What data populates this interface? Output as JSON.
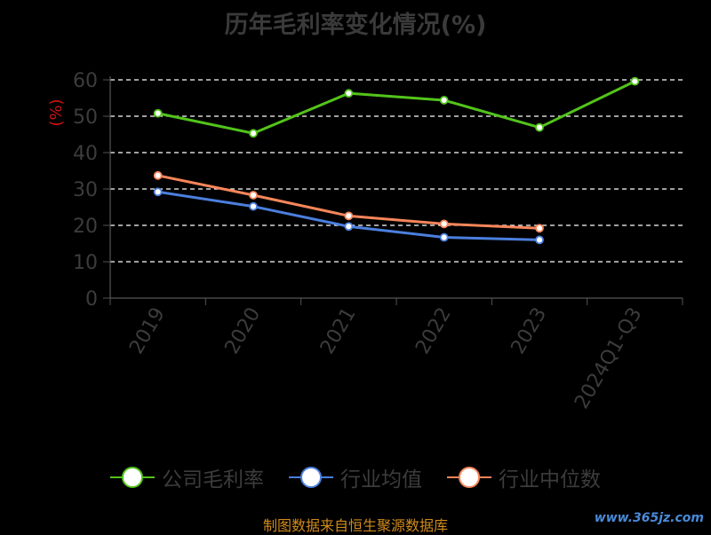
{
  "title": "历年毛利率变化情况(%)",
  "source_note": "制图数据来自恒生聚源数据库",
  "watermark": "www.365jz.com",
  "chart_data": {
    "type": "line",
    "ylabel": "(%)",
    "ylim": [
      0,
      60
    ],
    "yticks": [
      0,
      10,
      20,
      30,
      40,
      50,
      60
    ],
    "grid": true,
    "legend_position": "bottom",
    "categories": [
      "2019",
      "2020",
      "2021",
      "2022",
      "2023",
      "2024Q1-Q3"
    ],
    "series": [
      {
        "name": "公司毛利率",
        "color": "#52c41a",
        "values": [
          50.8,
          45.3,
          56.3,
          54.4,
          46.9,
          59.6
        ]
      },
      {
        "name": "行业均值",
        "color": "#4b7fde",
        "values": [
          29.2,
          25.2,
          19.7,
          16.7,
          16.0,
          null
        ]
      },
      {
        "name": "行业中位数",
        "color": "#f7865a",
        "values": [
          33.7,
          28.3,
          22.6,
          20.4,
          19.2,
          null
        ]
      }
    ]
  }
}
